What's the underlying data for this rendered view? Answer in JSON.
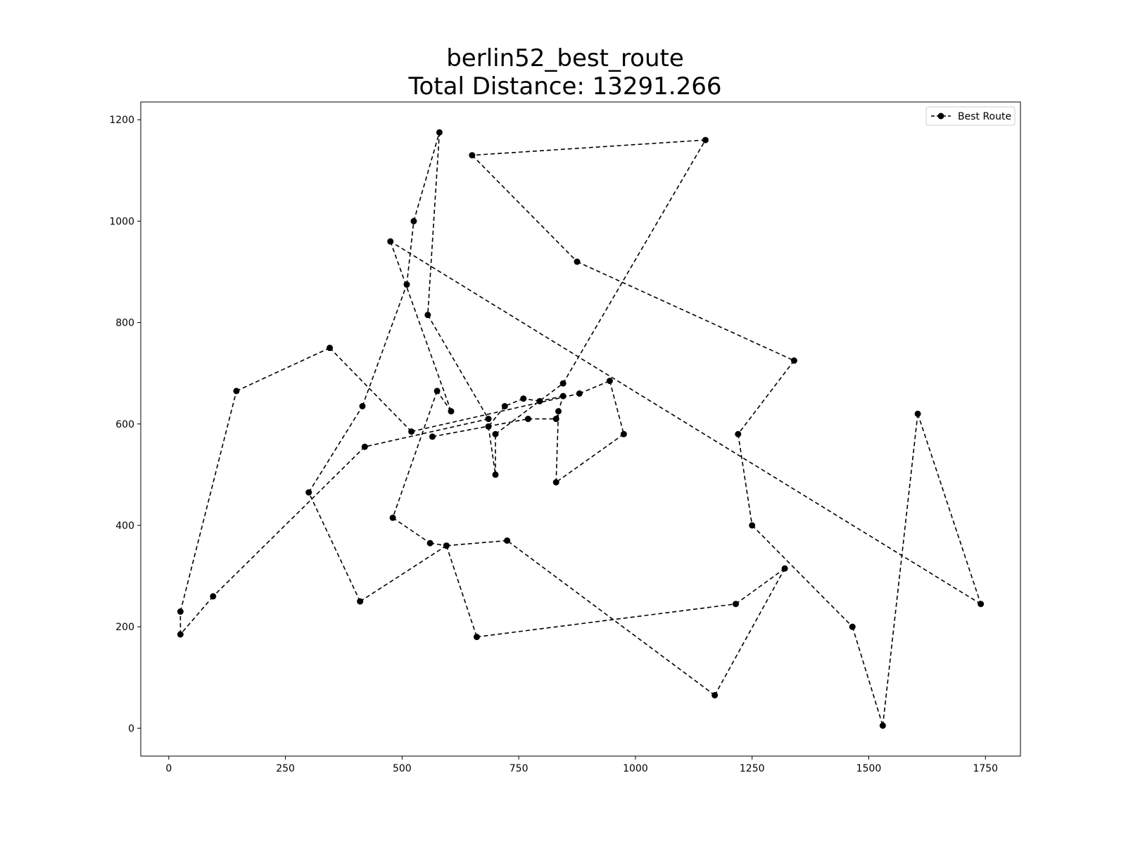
{
  "chart_data": {
    "type": "line",
    "title": "berlin52_best_route",
    "subtitle": "Total Distance: 13291.266",
    "xlabel": "",
    "ylabel": "",
    "xlim": [
      -60,
      1825
    ],
    "ylim": [
      -55,
      1235
    ],
    "xticks": [
      0,
      250,
      500,
      750,
      1000,
      1250,
      1500,
      1750
    ],
    "yticks": [
      0,
      200,
      400,
      600,
      800,
      1000,
      1200
    ],
    "grid": false,
    "legend": {
      "position": "top-right",
      "entries": [
        "Best Route"
      ]
    },
    "series": [
      {
        "name": "Best Route",
        "color": "#000000",
        "line_style": "dashed",
        "marker": "circle",
        "points": [
          [
            565,
            575
          ],
          [
            770,
            610
          ],
          [
            830,
            610
          ],
          [
            845,
            655
          ],
          [
            795,
            645
          ],
          [
            760,
            650
          ],
          [
            720,
            635
          ],
          [
            685,
            595
          ],
          [
            700,
            500
          ],
          [
            700,
            580
          ],
          [
            845,
            680
          ],
          [
            1150,
            1160
          ],
          [
            650,
            1130
          ],
          [
            875,
            920
          ],
          [
            1340,
            725
          ],
          [
            1220,
            580
          ],
          [
            1250,
            400
          ],
          [
            1465,
            200
          ],
          [
            1530,
            5
          ],
          [
            1605,
            620
          ],
          [
            1740,
            245
          ],
          [
            475,
            960
          ],
          [
            605,
            625
          ],
          [
            575,
            665
          ],
          [
            480,
            415
          ],
          [
            560,
            365
          ],
          [
            595,
            360
          ],
          [
            660,
            180
          ],
          [
            1215,
            245
          ],
          [
            1320,
            315
          ],
          [
            1170,
            65
          ],
          [
            725,
            370
          ],
          [
            595,
            360
          ],
          [
            410,
            250
          ],
          [
            300,
            465
          ],
          [
            415,
            635
          ],
          [
            510,
            875
          ],
          [
            525,
            1000
          ],
          [
            580,
            1175
          ],
          [
            555,
            815
          ],
          [
            685,
            610
          ],
          [
            420,
            555
          ],
          [
            95,
            260
          ],
          [
            25,
            185
          ],
          [
            25,
            230
          ],
          [
            145,
            665
          ],
          [
            345,
            750
          ],
          [
            520,
            585
          ],
          [
            880,
            660
          ],
          [
            945,
            685
          ],
          [
            975,
            580
          ],
          [
            830,
            485
          ],
          [
            835,
            625
          ]
        ]
      }
    ]
  }
}
